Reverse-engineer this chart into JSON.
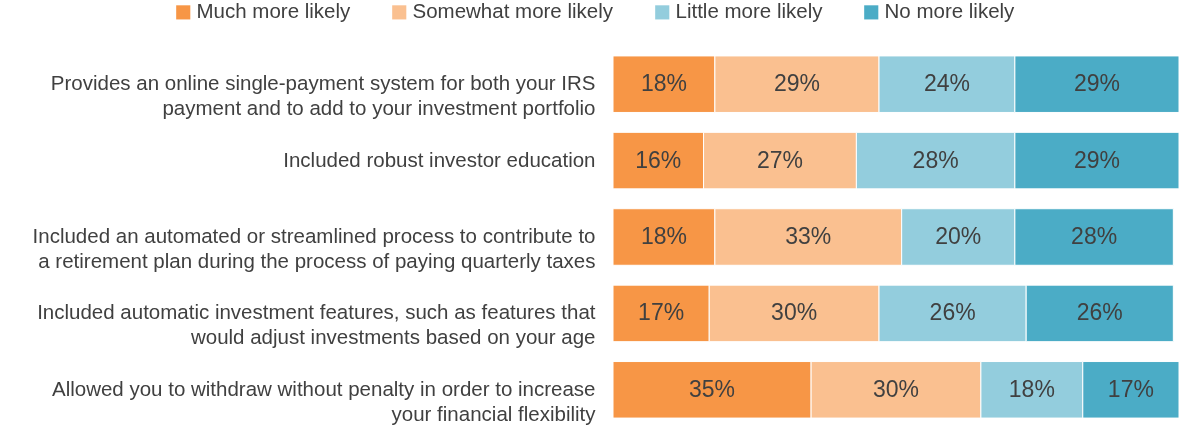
{
  "chart_data": {
    "type": "bar",
    "orientation": "horizontal",
    "stacked": true,
    "legend": "top",
    "categories": [
      "Provides an online single-payment system for both your IRS payment and to add to your investment portfolio",
      "Included robust investor education",
      "Included an automated or streamlined process to contribute to a retirement plan during the process of paying quarterly taxes",
      "Included automatic investment features, such as features that would adjust investments based on your age",
      "Allowed you to withdraw without penalty in order to increase your financial flexibility"
    ],
    "series": [
      {
        "name": "Much more likely",
        "color": "#f79646",
        "values": [
          18,
          16,
          18,
          17,
          35
        ],
        "value_labels": [
          "18%",
          "16%",
          "18%",
          "17%",
          "35%"
        ]
      },
      {
        "name": "Somewhat more likely",
        "color": "#fac090",
        "values": [
          29,
          27,
          33,
          30,
          30
        ],
        "value_labels": [
          "29%",
          "27%",
          "33%",
          "30%",
          "30%"
        ]
      },
      {
        "name": "Little more likely",
        "color": "#93cddd",
        "values": [
          24,
          28,
          20,
          26,
          18
        ],
        "value_labels": [
          "24%",
          "28%",
          "20%",
          "26%",
          "18%"
        ]
      },
      {
        "name": "No more likely",
        "color": "#4bacc6",
        "values": [
          29,
          29,
          28,
          26,
          17
        ],
        "value_labels": [
          "29%",
          "29%",
          "28%",
          "26%",
          "17%"
        ]
      }
    ]
  }
}
